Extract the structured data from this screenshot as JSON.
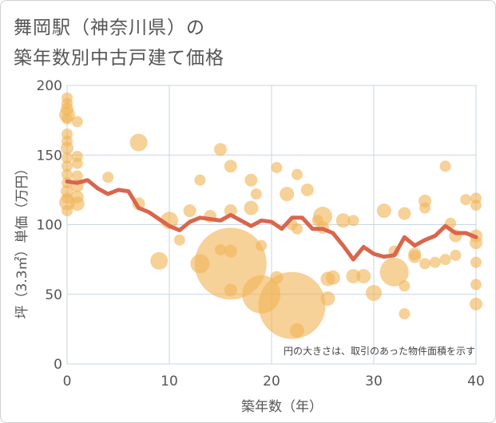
{
  "title_lines": [
    "舞岡駅（神奈川県）の",
    "築年数別中古戸建て価格"
  ],
  "chart_data": {
    "type": "scatter",
    "title": "舞岡駅（神奈川県）の築年数別中古戸建て価格",
    "xlabel": "築年数（年）",
    "ylabel": "坪（3.3㎡）単価（万円）",
    "xlim": [
      0,
      40
    ],
    "ylim": [
      0,
      200
    ],
    "x_ticks": [
      0,
      10,
      20,
      30,
      40
    ],
    "y_ticks": [
      0,
      50,
      100,
      150,
      200
    ],
    "grid": true,
    "note": "円の大きさは、取引のあった物件面積を示す",
    "colors": {
      "bubble": "#f0b458",
      "line": "#d9664c",
      "grid": "#c9d6e0"
    },
    "bubbles": [
      {
        "x": 0,
        "y": 191,
        "s": 7
      },
      {
        "x": 0,
        "y": 187,
        "s": 7
      },
      {
        "x": 0,
        "y": 183,
        "s": 8
      },
      {
        "x": 0,
        "y": 179,
        "s": 10
      },
      {
        "x": 0,
        "y": 176,
        "s": 7
      },
      {
        "x": 0,
        "y": 165,
        "s": 7
      },
      {
        "x": 0,
        "y": 160,
        "s": 7
      },
      {
        "x": 0,
        "y": 155,
        "s": 8
      },
      {
        "x": 0,
        "y": 148,
        "s": 7
      },
      {
        "x": 0,
        "y": 142,
        "s": 7
      },
      {
        "x": 0,
        "y": 136,
        "s": 7
      },
      {
        "x": 0,
        "y": 130,
        "s": 7
      },
      {
        "x": 0,
        "y": 124,
        "s": 8
      },
      {
        "x": 0,
        "y": 119,
        "s": 7
      },
      {
        "x": 0,
        "y": 116,
        "s": 10
      },
      {
        "x": 0,
        "y": 110,
        "s": 7
      },
      {
        "x": 1,
        "y": 174,
        "s": 7
      },
      {
        "x": 1,
        "y": 149,
        "s": 7
      },
      {
        "x": 1,
        "y": 144,
        "s": 7
      },
      {
        "x": 1,
        "y": 135,
        "s": 7
      },
      {
        "x": 1,
        "y": 128,
        "s": 8
      },
      {
        "x": 1,
        "y": 120,
        "s": 8
      },
      {
        "x": 1,
        "y": 115,
        "s": 9
      },
      {
        "x": 4,
        "y": 134,
        "s": 7
      },
      {
        "x": 7,
        "y": 159,
        "s": 11
      },
      {
        "x": 7,
        "y": 115,
        "s": 8
      },
      {
        "x": 9,
        "y": 74,
        "s": 11
      },
      {
        "x": 10,
        "y": 103,
        "s": 11
      },
      {
        "x": 11,
        "y": 89,
        "s": 7
      },
      {
        "x": 12,
        "y": 110,
        "s": 8
      },
      {
        "x": 13,
        "y": 132,
        "s": 7
      },
      {
        "x": 13,
        "y": 72,
        "s": 12
      },
      {
        "x": 14,
        "y": 106,
        "s": 8
      },
      {
        "x": 15,
        "y": 154,
        "s": 8
      },
      {
        "x": 15,
        "y": 82,
        "s": 7
      },
      {
        "x": 16,
        "y": 142,
        "s": 8
      },
      {
        "x": 16,
        "y": 110,
        "s": 8
      },
      {
        "x": 16,
        "y": 81,
        "s": 8
      },
      {
        "x": 16,
        "y": 72,
        "s": 45
      },
      {
        "x": 16,
        "y": 53,
        "s": 8
      },
      {
        "x": 18,
        "y": 132,
        "s": 8
      },
      {
        "x": 18,
        "y": 112,
        "s": 9
      },
      {
        "x": 18.5,
        "y": 122,
        "s": 7
      },
      {
        "x": 19,
        "y": 85,
        "s": 7
      },
      {
        "x": 19,
        "y": 50,
        "s": 24
      },
      {
        "x": 20.5,
        "y": 141,
        "s": 7
      },
      {
        "x": 20.5,
        "y": 62,
        "s": 8
      },
      {
        "x": 21.5,
        "y": 122,
        "s": 9
      },
      {
        "x": 22,
        "y": 42,
        "s": 42
      },
      {
        "x": 22,
        "y": 100,
        "s": 7
      },
      {
        "x": 22.5,
        "y": 136,
        "s": 7
      },
      {
        "x": 22.5,
        "y": 97,
        "s": 7
      },
      {
        "x": 22.5,
        "y": 24,
        "s": 9
      },
      {
        "x": 23.5,
        "y": 125,
        "s": 8
      },
      {
        "x": 24.5,
        "y": 103,
        "s": 7
      },
      {
        "x": 25,
        "y": 106,
        "s": 12
      },
      {
        "x": 25,
        "y": 98,
        "s": 8
      },
      {
        "x": 25.5,
        "y": 61,
        "s": 9
      },
      {
        "x": 26,
        "y": 62,
        "s": 9
      },
      {
        "x": 25.5,
        "y": 47,
        "s": 9
      },
      {
        "x": 27,
        "y": 103,
        "s": 9
      },
      {
        "x": 28,
        "y": 103,
        "s": 7
      },
      {
        "x": 28,
        "y": 63,
        "s": 9
      },
      {
        "x": 29,
        "y": 63,
        "s": 9
      },
      {
        "x": 30,
        "y": 51,
        "s": 10
      },
      {
        "x": 31,
        "y": 110,
        "s": 9
      },
      {
        "x": 32,
        "y": 66,
        "s": 18
      },
      {
        "x": 32,
        "y": 81,
        "s": 7
      },
      {
        "x": 33,
        "y": 108,
        "s": 8
      },
      {
        "x": 33,
        "y": 56,
        "s": 7
      },
      {
        "x": 33,
        "y": 36,
        "s": 7
      },
      {
        "x": 34,
        "y": 79,
        "s": 8
      },
      {
        "x": 34,
        "y": 77,
        "s": 8
      },
      {
        "x": 35,
        "y": 117,
        "s": 8
      },
      {
        "x": 35,
        "y": 112,
        "s": 7
      },
      {
        "x": 35,
        "y": 72,
        "s": 7
      },
      {
        "x": 36,
        "y": 73,
        "s": 7
      },
      {
        "x": 37,
        "y": 142,
        "s": 7
      },
      {
        "x": 37,
        "y": 75,
        "s": 7
      },
      {
        "x": 37.5,
        "y": 101,
        "s": 7
      },
      {
        "x": 38,
        "y": 92,
        "s": 8
      },
      {
        "x": 38,
        "y": 78,
        "s": 7
      },
      {
        "x": 39,
        "y": 118,
        "s": 7
      },
      {
        "x": 40,
        "y": 119,
        "s": 7
      },
      {
        "x": 40,
        "y": 114,
        "s": 7
      },
      {
        "x": 40,
        "y": 92,
        "s": 8
      },
      {
        "x": 40,
        "y": 87,
        "s": 8
      },
      {
        "x": 40,
        "y": 73,
        "s": 7
      },
      {
        "x": 40,
        "y": 57,
        "s": 7
      },
      {
        "x": 40,
        "y": 43,
        "s": 8
      }
    ],
    "trend_line": {
      "x": [
        0,
        1,
        2,
        3,
        4,
        5,
        6,
        7,
        8,
        9,
        10,
        11,
        12,
        13,
        14,
        15,
        16,
        17,
        18,
        19,
        20,
        21,
        22,
        23,
        24,
        25,
        26,
        27,
        28,
        29,
        30,
        31,
        32,
        33,
        34,
        35,
        36,
        37,
        38,
        39,
        40
      ],
      "y": [
        131,
        130,
        132,
        126,
        122,
        125,
        124,
        112,
        109,
        104,
        99,
        96,
        102,
        105,
        104,
        103,
        107,
        103,
        99,
        103,
        102,
        97,
        105,
        105,
        97,
        97,
        94,
        85,
        75,
        84,
        79,
        77,
        78,
        91,
        85,
        89,
        92,
        99,
        94,
        94,
        91
      ]
    }
  }
}
